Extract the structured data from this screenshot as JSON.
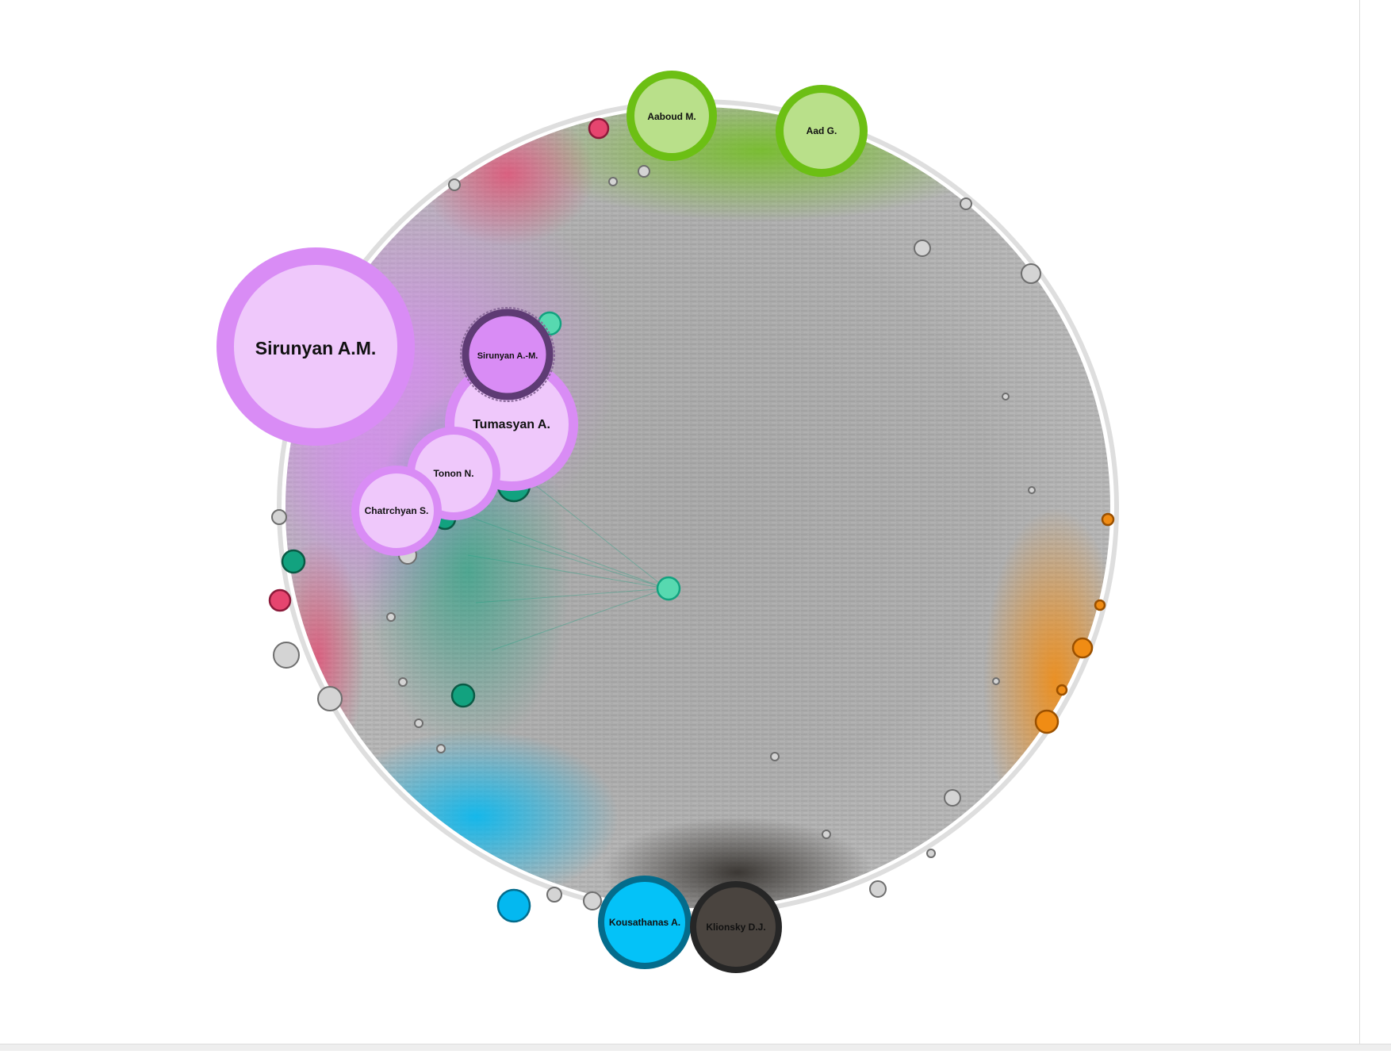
{
  "colors": {
    "background": "#ffffff",
    "edge_gray": "#9e9e9e",
    "purple_community": "#d98cf5",
    "purple_fill": "#efc8fb",
    "dark_purple_ring": "#5e3b74",
    "green_community": "#6cbf14",
    "green_fill": "#b9e08a",
    "teal_community": "#12a27f",
    "teal_fill": "#57d9b0",
    "pink_community": "#e6456f",
    "orange_community": "#f08c14",
    "blue_community": "#04b8f0",
    "blue_ring": "#046c8c",
    "black_community": "#403a35",
    "black_ring": "#262626",
    "small_gray": "#c9c9c9"
  },
  "nodes": [
    {
      "id": "sirunyan-am",
      "label": "Sirunyan A.M.",
      "community": "purple",
      "size": "xl"
    },
    {
      "id": "sirunyan-a-m",
      "label": "Sirunyan A.-M.",
      "community": "dark-purple",
      "size": "m"
    },
    {
      "id": "tumasyan",
      "label": "Tumasyan A.",
      "community": "purple",
      "size": "l"
    },
    {
      "id": "tonon",
      "label": "Tonon N.",
      "community": "purple",
      "size": "m"
    },
    {
      "id": "chatrchyan",
      "label": "Chatrchyan S.",
      "community": "purple",
      "size": "m"
    },
    {
      "id": "aaboud",
      "label": "Aaboud M.",
      "community": "green",
      "size": "m"
    },
    {
      "id": "aad",
      "label": "Aad G.",
      "community": "green",
      "size": "m"
    },
    {
      "id": "kousathanas",
      "label": "Kousathanas A.",
      "community": "blue",
      "size": "m"
    },
    {
      "id": "klionsky",
      "label": "Klionsky D.J.",
      "community": "black",
      "size": "m"
    }
  ]
}
